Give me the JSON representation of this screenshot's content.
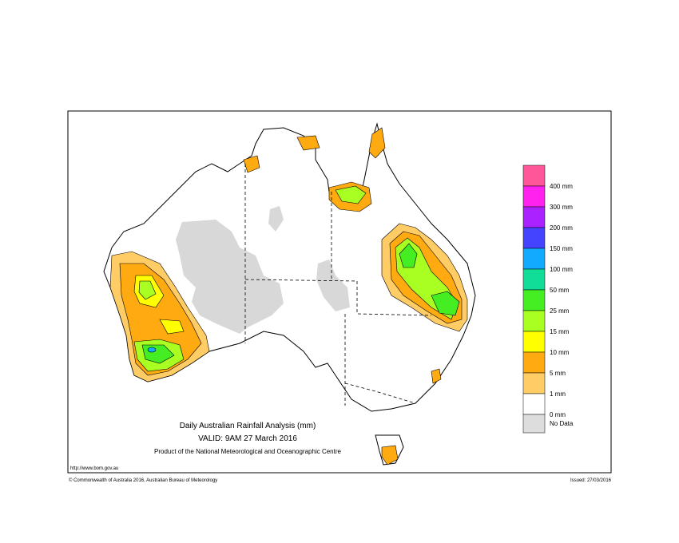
{
  "header": {
    "title": "Daily Australian Rainfall Analysis (mm)",
    "valid": "VALID: 9AM 27 March 2016",
    "product": "Product of the National Meteorological and Oceanographic Centre"
  },
  "legend": {
    "items": [
      {
        "label": "400 mm",
        "color": "#ff5599"
      },
      {
        "label": "300 mm",
        "color": "#ff22ee"
      },
      {
        "label": "200 mm",
        "color": "#aa22ff"
      },
      {
        "label": "150 mm",
        "color": "#4444ff"
      },
      {
        "label": "100 mm",
        "color": "#11aaff"
      },
      {
        "label": "50 mm",
        "color": "#11dd99"
      },
      {
        "label": "25 mm",
        "color": "#44ee22"
      },
      {
        "label": "15 mm",
        "color": "#aaff22"
      },
      {
        "label": "10 mm",
        "color": "#ffff00"
      },
      {
        "label": "5 mm",
        "color": "#ffaa11"
      },
      {
        "label": "1 mm",
        "color": "#ffcc66"
      },
      {
        "label": "0 mm",
        "color": "#ffffff"
      },
      {
        "label": "No Data",
        "color": "#dddddd"
      }
    ]
  },
  "footer": {
    "url": "http://www.bom.gov.au",
    "copyright": "© Commonwealth of Australia 2016, Australian Bureau of Meteorology",
    "issued": "Issued: 27/03/2016"
  }
}
